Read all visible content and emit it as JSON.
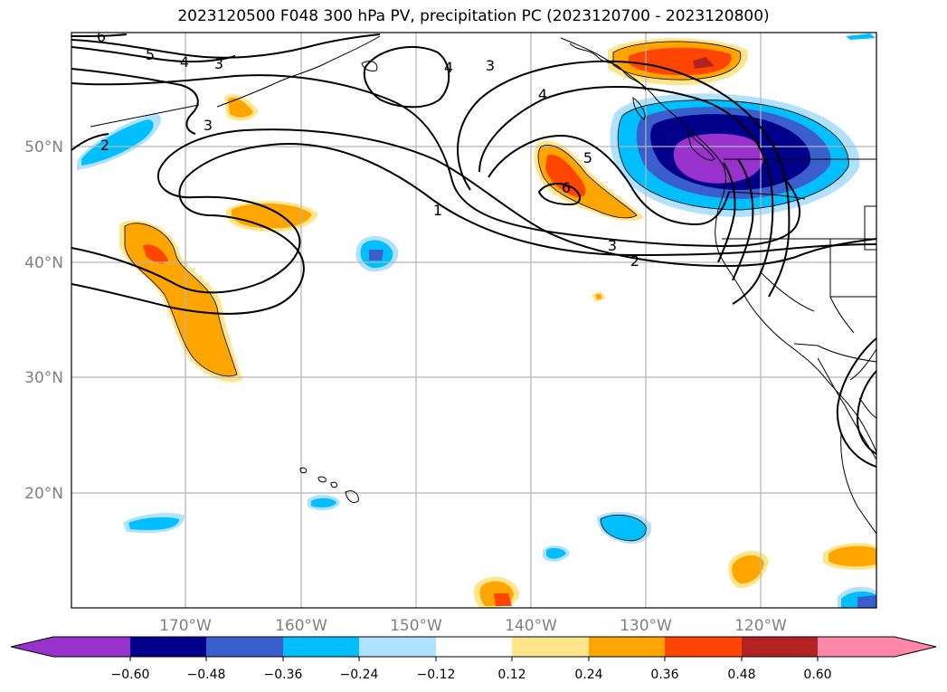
{
  "title": "2023120500 F048 300 hPa PV, precipitation PC (2023120700 - 2023120800)",
  "map": {
    "lat_labels": [
      "50°N",
      "40°N",
      "30°N",
      "20°N"
    ],
    "lon_labels": [
      "170°W",
      "160°W",
      "150°W",
      "140°W",
      "130°W",
      "120°W"
    ],
    "contour_levels": [
      "6",
      "5",
      "4",
      "3",
      "2",
      "1"
    ],
    "contour_labels": [
      "6",
      "5",
      "4",
      "3",
      "3",
      "2",
      "1",
      "4",
      "3",
      "5",
      "6",
      "3",
      "2"
    ]
  },
  "colorbar": {
    "tick_labels": [
      "−0.60",
      "−0.48",
      "−0.36",
      "−0.24",
      "−0.12",
      "0.12",
      "0.24",
      "0.36",
      "0.48",
      "0.60"
    ],
    "colors": [
      "#9932cc",
      "#00008b",
      "#3a5fcd",
      "#00bfff",
      "#b0e2ff",
      "#ffffff",
      "#ffe68c",
      "#ffa500",
      "#ff4500",
      "#b22222",
      "#ff88aa"
    ]
  }
}
